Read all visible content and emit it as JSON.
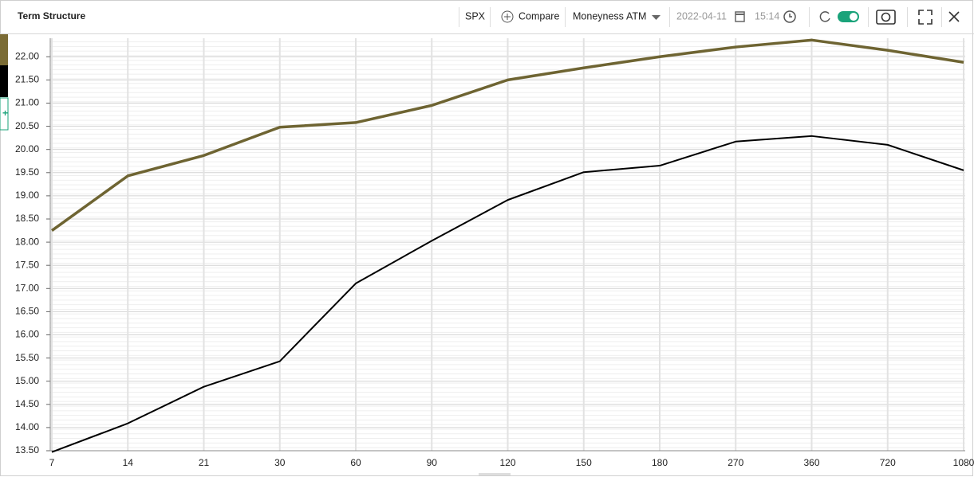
{
  "header": {
    "title": "Term Structure",
    "symbol": "SPX",
    "compare": "Compare",
    "moneyness_label": "Moneyness",
    "moneyness": "ATM",
    "date": "2022-04-11",
    "time": "15:14"
  },
  "chart_data": {
    "type": "line",
    "categories": [
      "7",
      "14",
      "21",
      "30",
      "60",
      "90",
      "120",
      "150",
      "180",
      "270",
      "360",
      "720",
      "1080"
    ],
    "series": [
      {
        "color": "#6e6432",
        "values": [
          18.25,
          19.43,
          19.87,
          20.48,
          20.58,
          20.95,
          21.5,
          21.76,
          22.0,
          22.21,
          22.36,
          22.14,
          21.88
        ]
      },
      {
        "color": "#000000",
        "values": [
          13.47,
          14.09,
          14.88,
          15.43,
          17.11,
          18.03,
          18.91,
          19.51,
          19.65,
          20.17,
          20.29,
          20.1,
          19.55
        ]
      }
    ],
    "ylim": [
      13.5,
      22.4
    ],
    "yticks": [
      {
        "value": 13.5,
        "label": "13.50"
      },
      {
        "value": 14,
        "label": "14.00"
      },
      {
        "value": 14.5,
        "label": "14.50"
      },
      {
        "value": 15,
        "label": "15.00"
      },
      {
        "value": 15.5,
        "label": "15.50"
      },
      {
        "value": 16,
        "label": "16.00"
      },
      {
        "value": 16.5,
        "label": "16.50"
      },
      {
        "value": 17,
        "label": "17.00"
      },
      {
        "value": 17.5,
        "label": "17.50"
      },
      {
        "value": 18,
        "label": "18.00"
      },
      {
        "value": 18.5,
        "label": "18.50"
      },
      {
        "value": 19,
        "label": "19.00"
      },
      {
        "value": 19.5,
        "label": "19.50"
      },
      {
        "value": 20,
        "label": "20.00"
      },
      {
        "value": 20.5,
        "label": "20.50"
      },
      {
        "value": 21,
        "label": "21.00"
      },
      {
        "value": 21.5,
        "label": "21.50"
      },
      {
        "value": 22,
        "label": "22.00"
      }
    ],
    "grid": true
  }
}
